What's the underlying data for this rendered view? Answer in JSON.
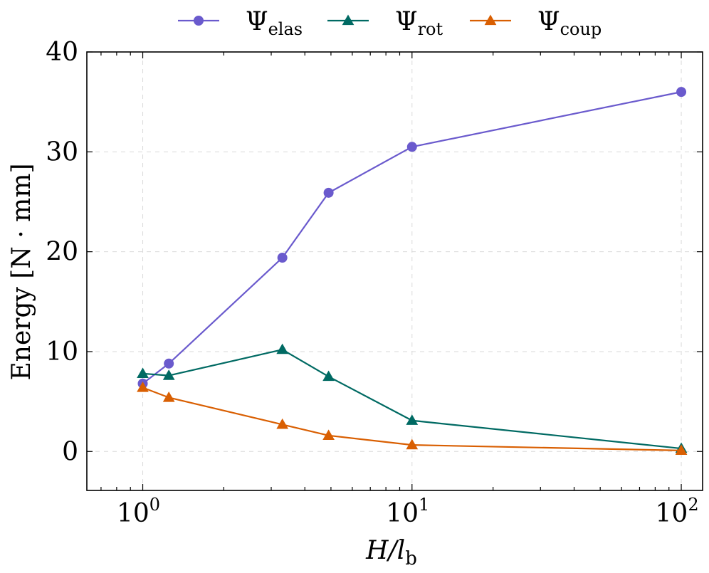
{
  "chart_data": {
    "type": "line",
    "xscale": "log",
    "xlim": [
      0.62,
      120
    ],
    "ylim": [
      -3.9,
      40
    ],
    "xlabel": "H/l_b",
    "ylabel": "Energy [N · mm]",
    "grid": true,
    "legend_position": "top",
    "x_ticks": [
      {
        "value": 1,
        "base": "10",
        "exp": "0"
      },
      {
        "value": 10,
        "base": "10",
        "exp": "1"
      },
      {
        "value": 100,
        "base": "10",
        "exp": "2"
      }
    ],
    "y_ticks": [
      0,
      10,
      20,
      30,
      40
    ],
    "series": [
      {
        "name": "Ψ_elas",
        "symbol": "Ψ",
        "subscript": "elas",
        "color": "#6a5acd",
        "marker": "circle",
        "x": [
          1,
          1.25,
          3.3,
          4.9,
          10,
          100
        ],
        "y": [
          6.8,
          8.8,
          19.4,
          25.9,
          30.5,
          36.0
        ]
      },
      {
        "name": "Ψ_rot",
        "symbol": "Ψ",
        "subscript": "rot",
        "color": "#006a63",
        "marker": "triangle",
        "x": [
          1,
          1.25,
          3.3,
          4.9,
          10,
          100
        ],
        "y": [
          7.8,
          7.6,
          10.2,
          7.5,
          3.1,
          0.3
        ]
      },
      {
        "name": "Ψ_coup",
        "symbol": "Ψ",
        "subscript": "coup",
        "color": "#d95f02",
        "marker": "triangle",
        "x": [
          1,
          1.25,
          3.3,
          4.9,
          10,
          100
        ],
        "y": [
          6.4,
          5.4,
          2.7,
          1.6,
          0.65,
          0.1
        ]
      }
    ]
  }
}
